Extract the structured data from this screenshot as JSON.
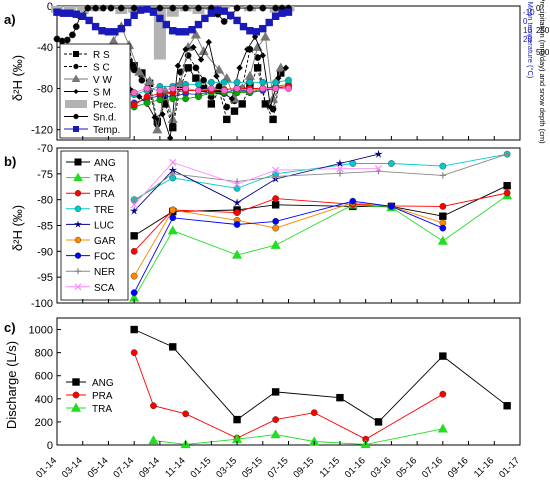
{
  "x_ticks": [
    "01-14",
    "03-14",
    "05-14",
    "07-14",
    "09-14",
    "11-14",
    "01-15",
    "03-15",
    "05-15",
    "07-15",
    "09-15",
    "11-15",
    "01-16",
    "03-16",
    "05-16",
    "07-16",
    "09-16",
    "11-16",
    "01-17"
  ],
  "panel_a": {
    "label": "a)",
    "ylabel_main": "δ²H (‰)",
    "y_ticks": [
      0,
      -40,
      -80,
      -120
    ],
    "ylim": [
      -130,
      0
    ],
    "right_label_outer": "Precipitation (mm/day) and snow depth (cm)",
    "right_label_inner": "Mean temperature (°C)",
    "right_outer_ticks": [
      "0",
      "250",
      "500"
    ],
    "temp_ticks": [
      "-10",
      "0",
      "10",
      "20"
    ],
    "legend": [
      "R S",
      "S C",
      "V W",
      "S M",
      "Prec.",
      "Sn.d.",
      "Temp."
    ],
    "colors": {
      "RS": "#000000",
      "SC": "#000000",
      "VW": "#777777",
      "SM": "#000000",
      "prec": "#b3b3b3",
      "snow": "#000000",
      "temp": "#1a1ab8"
    }
  },
  "panel_b": {
    "label": "b)",
    "ylabel_main": "δ²H (‰)",
    "y_ticks": [
      -70,
      -75,
      -80,
      -85,
      -90,
      -95,
      -100
    ],
    "ylim": [
      -100,
      -70
    ]
  },
  "panel_c": {
    "label": "c)",
    "ylabel_main": "Discharge (L/s)",
    "y_ticks": [
      0,
      200,
      400,
      600,
      800,
      1000
    ],
    "ylim": [
      0,
      1100
    ]
  },
  "chart_data": [
    {
      "type": "line",
      "panel": "a",
      "x_unit": "months since Jan 2014",
      "series": [
        {
          "name": "R S",
          "marker": "square",
          "color": "#000000",
          "dash": true,
          "x": [
            5.0,
            5.6,
            6.0,
            6.6,
            7.2,
            7.8,
            8.4,
            9.0,
            9.6,
            10.2,
            10.8,
            11.4,
            12.0,
            12.6,
            13.2,
            13.8,
            14.4,
            15.0,
            15.6,
            16.2,
            16.8,
            17.4
          ],
          "y": [
            -48,
            -55,
            -58,
            -65,
            -75,
            -112,
            -95,
            -118,
            -78,
            -60,
            -70,
            -80,
            -95,
            -82,
            -110,
            -102,
            -95,
            -78,
            -60,
            -95,
            -110,
            -65
          ]
        },
        {
          "name": "S C",
          "marker": "circle",
          "color": "#000000",
          "dash": true,
          "x": [
            5.0,
            5.6,
            6.0,
            6.6,
            7.2,
            7.8,
            8.4,
            9.0,
            9.6,
            10.2,
            10.8,
            11.4,
            12.0,
            12.6,
            13.2,
            13.8,
            14.4,
            15.0,
            15.6,
            16.2,
            16.8,
            17.4
          ],
          "y": [
            -45,
            -40,
            -62,
            -72,
            -82,
            -115,
            -88,
            -115,
            -64,
            -48,
            -60,
            -72,
            -88,
            -78,
            -98,
            -92,
            -80,
            -42,
            -50,
            -95,
            -100,
            -62
          ]
        },
        {
          "name": "V W",
          "marker": "triangle",
          "color": "#777777",
          "dash": false,
          "x": [
            4.4,
            5.0,
            5.6,
            6.4,
            7.2,
            7.8,
            8.4,
            9.0,
            9.6,
            10.2,
            10.8,
            11.4,
            12.6,
            13.2,
            13.8,
            14.4,
            15.0,
            15.6,
            16.2,
            16.8,
            17.4
          ],
          "y": [
            -34,
            -20,
            -38,
            -64,
            -73,
            -120,
            -82,
            -110,
            -75,
            -40,
            -28,
            -44,
            -62,
            -70,
            -90,
            -80,
            -68,
            -40,
            -30,
            -90,
            -60
          ]
        },
        {
          "name": "S M",
          "marker": "diamond",
          "color": "#000000",
          "dash": false,
          "x": [
            4.6,
            5.2,
            5.8,
            6.4,
            7.0,
            7.6,
            8.2,
            8.8,
            9.4,
            10.0,
            10.6,
            11.2,
            11.8,
            12.4,
            13.0,
            13.6,
            14.2,
            14.8,
            15.4,
            16.0,
            16.6,
            17.2,
            17.8
          ],
          "y": [
            -70,
            -62,
            -82,
            -88,
            -95,
            -108,
            -105,
            -128,
            -58,
            -42,
            -40,
            -52,
            -35,
            -68,
            -85,
            -90,
            -60,
            -42,
            -30,
            -48,
            -98,
            -70,
            -60
          ]
        },
        {
          "name": "Sn.d.",
          "marker": "circle",
          "color": "#000000",
          "dash": false,
          "x": [
            0.0,
            0.4,
            0.8,
            1.2,
            1.5,
            1.8,
            2.4,
            3.0,
            3.6,
            4.2,
            5.0,
            6.0,
            8.0,
            9.0,
            10.0,
            11.0,
            12.0,
            12.5,
            13.0,
            13.5,
            14.0,
            15.0,
            16.0,
            17.0,
            17.5,
            18.0
          ],
          "y": [
            -32,
            -34,
            -33,
            -28,
            -20,
            -10,
            -2,
            -2,
            -2,
            -2,
            -2,
            -2,
            -2,
            -2,
            -2,
            -2,
            -2,
            -8,
            -15,
            -10,
            -2,
            -2,
            -2,
            -2,
            -2,
            -2
          ]
        },
        {
          "name": "Temp.",
          "marker": "square",
          "color": "#1a1ab8",
          "dash": false,
          "x": [
            0.0,
            0.5,
            1.0,
            1.5,
            2.0,
            2.5,
            3.0,
            3.5,
            4.0,
            4.5,
            5.0,
            5.5,
            6.0,
            6.5,
            7.0,
            7.5,
            8.0,
            8.5,
            9.0,
            9.5,
            10.0,
            10.5,
            11.0,
            11.5,
            12.0,
            12.5,
            13.0,
            13.5,
            14.0,
            14.5,
            15.0,
            15.5,
            16.0,
            16.5,
            17.0,
            17.5,
            18.0
          ],
          "y": [
            -6,
            -7,
            -7,
            -8,
            -10,
            -14,
            -20,
            -24,
            -25,
            -25,
            -22,
            -16,
            -9,
            -4,
            -3,
            -6,
            -12,
            -18,
            -24,
            -25,
            -25,
            -23,
            -18,
            -12,
            -7,
            -4,
            -5,
            -9,
            -14,
            -20,
            -24,
            -25,
            -22,
            -16,
            -10,
            -7,
            -6
          ]
        },
        {
          "name": "",
          "marker": "circle",
          "color": "#3333cc",
          "dash": false,
          "x": [
            6.0,
            7.0,
            8.0,
            9.0,
            10.0,
            11.0,
            12.0,
            13.0,
            14.0,
            15.0,
            16.0,
            17.0,
            18.0
          ],
          "y": [
            -94,
            -90,
            -87,
            -88,
            -85,
            -86,
            -83,
            -85,
            -80,
            -84,
            -82,
            -80,
            -78
          ]
        },
        {
          "name": "",
          "marker": "circle",
          "color": "#00aa00",
          "dash": false,
          "x": [
            6.0,
            7.0,
            8.0,
            9.0,
            10.0,
            11.0,
            12.0,
            13.0,
            14.0,
            15.0,
            16.0,
            17.0,
            18.0
          ],
          "y": [
            -98,
            -94,
            -91,
            -90,
            -90,
            -88,
            -84,
            -84,
            -84,
            -84,
            -80,
            -78,
            -76
          ]
        },
        {
          "name": "",
          "marker": "circle",
          "color": "#ff0000",
          "dash": false,
          "x": [
            6.0,
            7.0,
            8.0,
            9.0,
            10.0,
            11.0,
            12.0,
            13.0,
            14.0,
            15.0,
            16.0,
            17.0,
            18.0
          ],
          "y": [
            -96,
            -88,
            -85,
            -84,
            -82,
            -82,
            -82,
            -81,
            -80,
            -80,
            -80,
            -79,
            -78
          ]
        },
        {
          "name": "",
          "marker": "circle",
          "color": "#00bbbb",
          "dash": false,
          "x": [
            6.0,
            7.0,
            8.0,
            9.0,
            10.0,
            11.0,
            12.0,
            13.0,
            14.0,
            15.0,
            16.0,
            17.0,
            18.0
          ],
          "y": [
            -86,
            -82,
            -78,
            -78,
            -76,
            -76,
            -74,
            -74,
            -74,
            -74,
            -74,
            -74,
            -72
          ]
        },
        {
          "name": "",
          "marker": "circle",
          "color": "#ff66cc",
          "dash": false,
          "x": [
            6.0,
            7.0,
            8.0,
            9.0,
            10.0,
            11.0,
            12.0,
            13.0,
            14.0,
            15.0,
            16.0,
            17.0,
            18.0
          ],
          "y": [
            -84,
            -80,
            -82,
            -80,
            -80,
            -82,
            -80,
            -82,
            -80,
            -82,
            -80,
            -80,
            -80
          ]
        }
      ],
      "bars": {
        "name": "Prec.",
        "unit": "mm/day",
        "x": [
          0,
          1,
          2,
          3,
          4,
          5,
          6,
          7,
          8,
          9,
          10,
          11,
          12,
          13,
          14,
          15,
          16,
          17,
          18
        ],
        "values": [
          25,
          40,
          30,
          20,
          0,
          30,
          25,
          20,
          200,
          40,
          20,
          30,
          15,
          10,
          0,
          20,
          10,
          25,
          20
        ]
      }
    },
    {
      "type": "line",
      "panel": "b",
      "x_unit": "months since Jan 2014",
      "series": [
        {
          "name": "ANG",
          "marker": "square",
          "color": "#000000",
          "x": [
            6,
            9,
            14,
            17,
            23,
            26,
            30,
            35
          ],
          "y": [
            -87,
            -82.3,
            -82,
            -81,
            -81.3,
            -81.3,
            -83.2,
            -77.3
          ]
        },
        {
          "name": "TRA",
          "marker": "triangle",
          "color": "#22dd22",
          "x": [
            6,
            9,
            14,
            17,
            23,
            26,
            30,
            35
          ],
          "y": [
            -99,
            -86,
            -90.7,
            -88.8,
            -81,
            -81.5,
            -88,
            -79.2
          ]
        },
        {
          "name": "PRA",
          "marker": "circle",
          "color": "#ff0000",
          "x": [
            6,
            9,
            14,
            17,
            23,
            26,
            30,
            35
          ],
          "y": [
            -90,
            -82,
            -82.5,
            -79.8,
            -80.9,
            -81.2,
            -81.3,
            -78.7
          ]
        },
        {
          "name": "TRE",
          "marker": "circle",
          "color": "#00cccc",
          "x": [
            6,
            9,
            14,
            17,
            23,
            26,
            30,
            35
          ],
          "y": [
            -80,
            -75.8,
            -77.8,
            -75,
            -73,
            -73,
            -73.5,
            -71.2
          ]
        },
        {
          "name": "LUC",
          "marker": "star",
          "color": "#000080",
          "x": [
            6,
            9,
            14,
            17,
            22,
            25
          ],
          "y": [
            -82.2,
            -74.3,
            -80.6,
            -76,
            -73,
            -71.2
          ]
        },
        {
          "name": "GAR",
          "marker": "circle",
          "color": "#ff8800",
          "x": [
            6,
            9,
            14,
            17,
            23,
            26,
            30
          ],
          "y": [
            -94.8,
            -82,
            -84,
            -85.5,
            -80.6,
            -81.3,
            -84.5
          ]
        },
        {
          "name": "FOC",
          "marker": "circle",
          "color": "#0000ff",
          "x": [
            6,
            9,
            14,
            17,
            23,
            26,
            30
          ],
          "y": [
            -98,
            -83.5,
            -84.8,
            -84.2,
            -80.3,
            -81.3,
            -85.5
          ]
        },
        {
          "name": "NER",
          "marker": "plus",
          "color": "#888888",
          "x": [
            6,
            9,
            14,
            17,
            22,
            25,
            30,
            35
          ],
          "y": [
            -80.3,
            -75,
            -76.5,
            -75.5,
            -74.9,
            -74.5,
            -75.3,
            -71.2
          ]
        },
        {
          "name": "SCA",
          "marker": "cross",
          "color": "#ff88ff",
          "x": [
            6,
            9,
            14,
            17,
            22,
            25
          ],
          "y": [
            -81,
            -72.8,
            -77,
            -74.3,
            -74,
            -74
          ]
        }
      ]
    },
    {
      "type": "line",
      "panel": "c",
      "x_unit": "months since Jan 2014",
      "series": [
        {
          "name": "ANG",
          "marker": "square",
          "color": "#000000",
          "x": [
            6,
            9,
            14,
            17,
            22,
            25,
            30,
            35
          ],
          "y": [
            1000,
            850,
            220,
            460,
            410,
            200,
            770,
            340
          ]
        },
        {
          "name": "PRA",
          "marker": "circle",
          "color": "#ff0000",
          "x": [
            6,
            7.5,
            10,
            14,
            17,
            20,
            24,
            30
          ],
          "y": [
            800,
            340,
            270,
            60,
            220,
            280,
            50,
            440
          ]
        },
        {
          "name": "TRA",
          "marker": "triangle",
          "color": "#22dd22",
          "x": [
            7.5,
            10,
            14,
            17,
            20,
            24,
            30
          ],
          "y": [
            40,
            5,
            50,
            90,
            30,
            5,
            140
          ]
        }
      ]
    }
  ]
}
